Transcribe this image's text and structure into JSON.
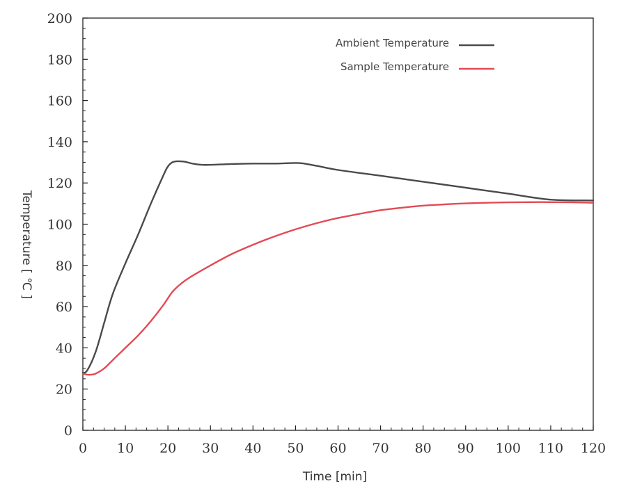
{
  "chart_data": {
    "type": "line",
    "title": "",
    "xlabel": "Time [min]",
    "ylabel": "Temperature [ ℃ ]",
    "xlim": [
      0,
      120
    ],
    "ylim": [
      0,
      200
    ],
    "x_ticks": [
      0,
      10,
      20,
      30,
      40,
      50,
      60,
      70,
      80,
      90,
      100,
      110,
      120
    ],
    "y_ticks": [
      0,
      20,
      40,
      60,
      80,
      100,
      120,
      140,
      160,
      180,
      200
    ],
    "grid": false,
    "legend_position": "top-right",
    "series": [
      {
        "name": "Ambient Temperature",
        "color": "#4a4a4a",
        "x": [
          0,
          1,
          3,
          5,
          7,
          10,
          13,
          16,
          19,
          20,
          21,
          22,
          23,
          24,
          26,
          28,
          30,
          35,
          40,
          45,
          50,
          52,
          55,
          60,
          70,
          80,
          90,
          100,
          110,
          120
        ],
        "y": [
          28,
          29,
          38,
          52,
          66,
          81,
          95,
          110,
          124,
          128,
          130,
          130.5,
          130.5,
          130.3,
          129.3,
          128.8,
          128.8,
          129.2,
          129.4,
          129.4,
          129.7,
          129.4,
          128.3,
          126.3,
          123.5,
          120.6,
          117.7,
          114.8,
          111.9,
          111.5
        ]
      },
      {
        "name": "Sample Temperature",
        "color": "#e34a54",
        "x": [
          0,
          1,
          2,
          3,
          5,
          7,
          10,
          13,
          16,
          19,
          21,
          23,
          25,
          30,
          35,
          40,
          45,
          50,
          55,
          60,
          65,
          70,
          75,
          80,
          85,
          90,
          95,
          100,
          105,
          110,
          115,
          120
        ],
        "y": [
          27.5,
          27,
          27,
          27.5,
          30,
          34,
          40,
          46,
          53,
          61,
          67,
          71,
          74,
          80,
          85.5,
          90,
          94,
          97.5,
          100.5,
          103,
          105,
          106.8,
          108,
          109,
          109.6,
          110.1,
          110.4,
          110.6,
          110.7,
          110.7,
          110.6,
          110.4
        ]
      }
    ]
  }
}
